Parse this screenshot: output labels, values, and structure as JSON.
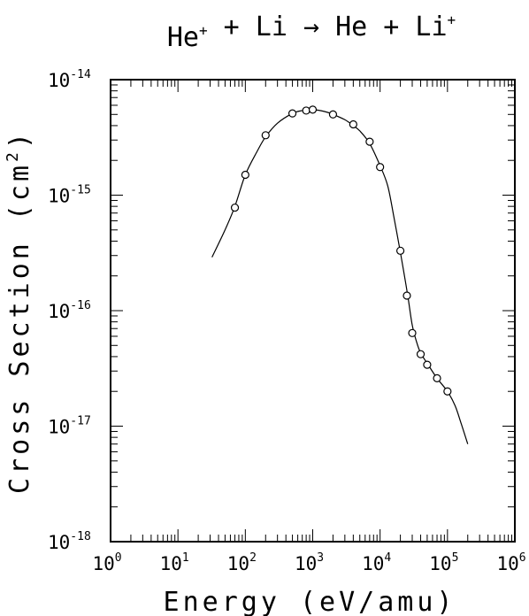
{
  "chart_data": {
    "type": "line",
    "title": {
      "parts": [
        {
          "text": "He",
          "sup": "+"
        },
        {
          "text": " + Li → He + Li",
          "sup": "+"
        }
      ]
    },
    "xlabel": "Energy (eV/amu)",
    "ylabel": {
      "prefix": "Cross Section (cm",
      "sup": "2",
      "suffix": ")"
    },
    "x_scale": "log",
    "y_scale": "log",
    "xlim": [
      1,
      1000000
    ],
    "ylim": [
      1e-18,
      1e-14
    ],
    "x_ticks": [
      {
        "base": "10",
        "exp": "0",
        "value": 1
      },
      {
        "base": "10",
        "exp": "1",
        "value": 10
      },
      {
        "base": "10",
        "exp": "2",
        "value": 100
      },
      {
        "base": "10",
        "exp": "3",
        "value": 1000
      },
      {
        "base": "10",
        "exp": "4",
        "value": 10000
      },
      {
        "base": "10",
        "exp": "5",
        "value": 100000
      },
      {
        "base": "10",
        "exp": "6",
        "value": 1000000
      }
    ],
    "y_ticks": [
      {
        "base": "10",
        "exp": "-14",
        "value": 1e-14
      },
      {
        "base": "10",
        "exp": "-15",
        "value": 1e-15
      },
      {
        "base": "10",
        "exp": "-16",
        "value": 1e-16
      },
      {
        "base": "10",
        "exp": "-17",
        "value": 1e-17
      },
      {
        "base": "10",
        "exp": "-18",
        "value": 1e-18
      }
    ],
    "grid": false,
    "series": [
      {
        "kind": "fit-curve",
        "points": [
          [
            32,
            2.9e-16
          ],
          [
            50,
            5e-16
          ],
          [
            70,
            8e-16
          ],
          [
            100,
            1.5e-15
          ],
          [
            150,
            2.4e-15
          ],
          [
            200,
            3.2e-15
          ],
          [
            300,
            4.2e-15
          ],
          [
            500,
            5.1e-15
          ],
          [
            700,
            5.4e-15
          ],
          [
            1000,
            5.5e-15
          ],
          [
            1500,
            5.3e-15
          ],
          [
            2000,
            5e-15
          ],
          [
            3000,
            4.5e-15
          ],
          [
            4000,
            4e-15
          ],
          [
            5000,
            3.6e-15
          ],
          [
            7000,
            2.8e-15
          ],
          [
            10000,
            1.8e-15
          ],
          [
            13000,
            1.2e-15
          ],
          [
            16000,
            6.5e-16
          ],
          [
            20000,
            3.2e-16
          ],
          [
            23000,
            2e-16
          ],
          [
            26000,
            1.3e-16
          ],
          [
            30000,
            7.5e-17
          ],
          [
            35000,
            5.3e-17
          ],
          [
            40000,
            4.3e-17
          ],
          [
            50000,
            3.5e-17
          ],
          [
            70000,
            2.6e-17
          ],
          [
            100000,
            2e-17
          ],
          [
            130000,
            1.5e-17
          ],
          [
            160000,
            1.05e-17
          ],
          [
            200000,
            7e-18
          ]
        ]
      },
      {
        "kind": "data-points",
        "points": [
          [
            70,
            7.8e-16
          ],
          [
            100,
            1.5e-15
          ],
          [
            200,
            3.3e-15
          ],
          [
            500,
            5.1e-15
          ],
          [
            800,
            5.4e-15
          ],
          [
            1000,
            5.5e-15
          ],
          [
            2000,
            5e-15
          ],
          [
            4000,
            4.1e-15
          ],
          [
            7000,
            2.9e-15
          ],
          [
            10000,
            1.75e-15
          ],
          [
            20000,
            3.3e-16
          ],
          [
            25000,
            1.35e-16
          ],
          [
            30000,
            6.4e-17
          ],
          [
            40000,
            4.2e-17
          ],
          [
            50000,
            3.4e-17
          ],
          [
            70000,
            2.6e-17
          ],
          [
            100000,
            2e-17
          ]
        ]
      }
    ]
  }
}
